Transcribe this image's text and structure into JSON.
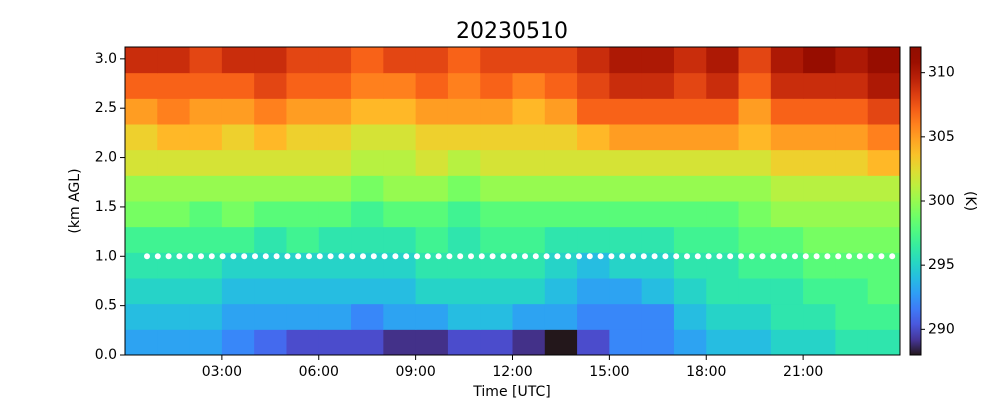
{
  "chart_data": {
    "type": "heatmap",
    "title": "20230510",
    "x_label": "Time [UTC]",
    "y_label": "(km AGL)",
    "colorbar_label": "(K)",
    "colormap": "turbo",
    "x": [
      0.5,
      1.5,
      2.5,
      3.5,
      4.5,
      5.5,
      6.5,
      7.5,
      8.5,
      9.5,
      10.5,
      11.5,
      12.5,
      13.5,
      14.5,
      15.5,
      16.5,
      17.5,
      18.5,
      19.5,
      20.5,
      21.5,
      22.5,
      23.5
    ],
    "y": [
      0.13,
      0.39,
      0.65,
      0.91,
      1.17,
      1.43,
      1.69,
      1.95,
      2.21,
      2.47,
      2.73,
      2.99
    ],
    "z": [
      [
        293,
        293,
        293,
        292,
        291,
        290,
        290,
        290,
        289,
        289,
        290,
        290,
        289,
        288,
        290,
        292,
        292,
        293,
        294,
        294,
        295,
        295,
        296,
        296
      ],
      [
        294,
        294,
        294,
        293,
        293,
        293,
        293,
        292,
        293,
        293,
        294,
        294,
        293,
        293,
        292,
        292,
        292,
        294,
        295,
        295,
        296,
        296,
        297,
        297
      ],
      [
        295,
        295,
        295,
        294,
        294,
        294,
        294,
        294,
        294,
        295,
        295,
        295,
        295,
        294,
        293,
        293,
        294,
        295,
        296,
        296,
        296,
        297,
        297,
        298
      ],
      [
        296,
        296,
        296,
        295,
        295,
        295,
        295,
        295,
        295,
        296,
        296,
        296,
        296,
        295,
        294,
        295,
        295,
        296,
        296,
        297,
        297,
        298,
        298,
        298
      ],
      [
        297,
        297,
        297,
        297,
        296,
        297,
        296,
        296,
        296,
        297,
        296,
        297,
        297,
        296,
        296,
        296,
        296,
        297,
        297,
        298,
        298,
        299,
        299,
        299
      ],
      [
        299,
        299,
        298,
        299,
        298,
        298,
        298,
        297,
        298,
        298,
        297,
        298,
        298,
        298,
        298,
        298,
        298,
        298,
        298,
        299,
        300,
        300,
        300,
        300
      ],
      [
        300,
        300,
        300,
        300,
        300,
        300,
        300,
        299,
        300,
        300,
        299,
        300,
        300,
        300,
        300,
        300,
        300,
        300,
        300,
        300,
        301,
        301,
        301,
        301
      ],
      [
        302,
        302,
        302,
        302,
        302,
        302,
        302,
        301,
        301,
        302,
        301,
        302,
        302,
        302,
        302,
        302,
        302,
        302,
        302,
        302,
        303,
        303,
        303,
        304
      ],
      [
        303,
        304,
        304,
        303,
        304,
        303,
        303,
        302,
        302,
        303,
        303,
        303,
        303,
        303,
        304,
        305,
        305,
        305,
        305,
        304,
        305,
        305,
        305,
        306
      ],
      [
        305,
        306,
        305,
        305,
        306,
        305,
        305,
        304,
        304,
        305,
        305,
        305,
        304,
        305,
        307,
        307,
        307,
        307,
        307,
        305,
        307,
        307,
        307,
        308
      ],
      [
        307,
        307,
        307,
        307,
        308,
        307,
        307,
        306,
        306,
        307,
        306,
        307,
        306,
        307,
        308,
        309,
        309,
        308,
        309,
        307,
        309,
        309,
        309,
        310
      ],
      [
        309,
        309,
        308,
        309,
        309,
        308,
        308,
        307,
        308,
        308,
        307,
        308,
        308,
        308,
        309,
        310,
        310,
        309,
        310,
        308,
        310,
        311,
        310,
        311
      ]
    ],
    "xlim": [
      0,
      24
    ],
    "xticks": [
      {
        "value": 3,
        "label": "03:00"
      },
      {
        "value": 6,
        "label": "06:00"
      },
      {
        "value": 9,
        "label": "09:00"
      },
      {
        "value": 12,
        "label": "12:00"
      },
      {
        "value": 15,
        "label": "15:00"
      },
      {
        "value": 18,
        "label": "18:00"
      },
      {
        "value": 21,
        "label": "21:00"
      }
    ],
    "ylim": [
      0,
      3.12
    ],
    "yticks": [
      {
        "value": 0,
        "label": "0.0"
      },
      0.5,
      {
        "value": 1,
        "label": "1.0"
      },
      1.5,
      {
        "value": 2,
        "label": "2.0"
      },
      2.5,
      {
        "value": 3,
        "label": "3.0"
      }
    ],
    "zlim": [
      288,
      312
    ],
    "zticks": [
      290,
      295,
      300,
      305,
      310
    ],
    "reference_line": {
      "y": 1.0,
      "color": "#ffffff"
    }
  }
}
